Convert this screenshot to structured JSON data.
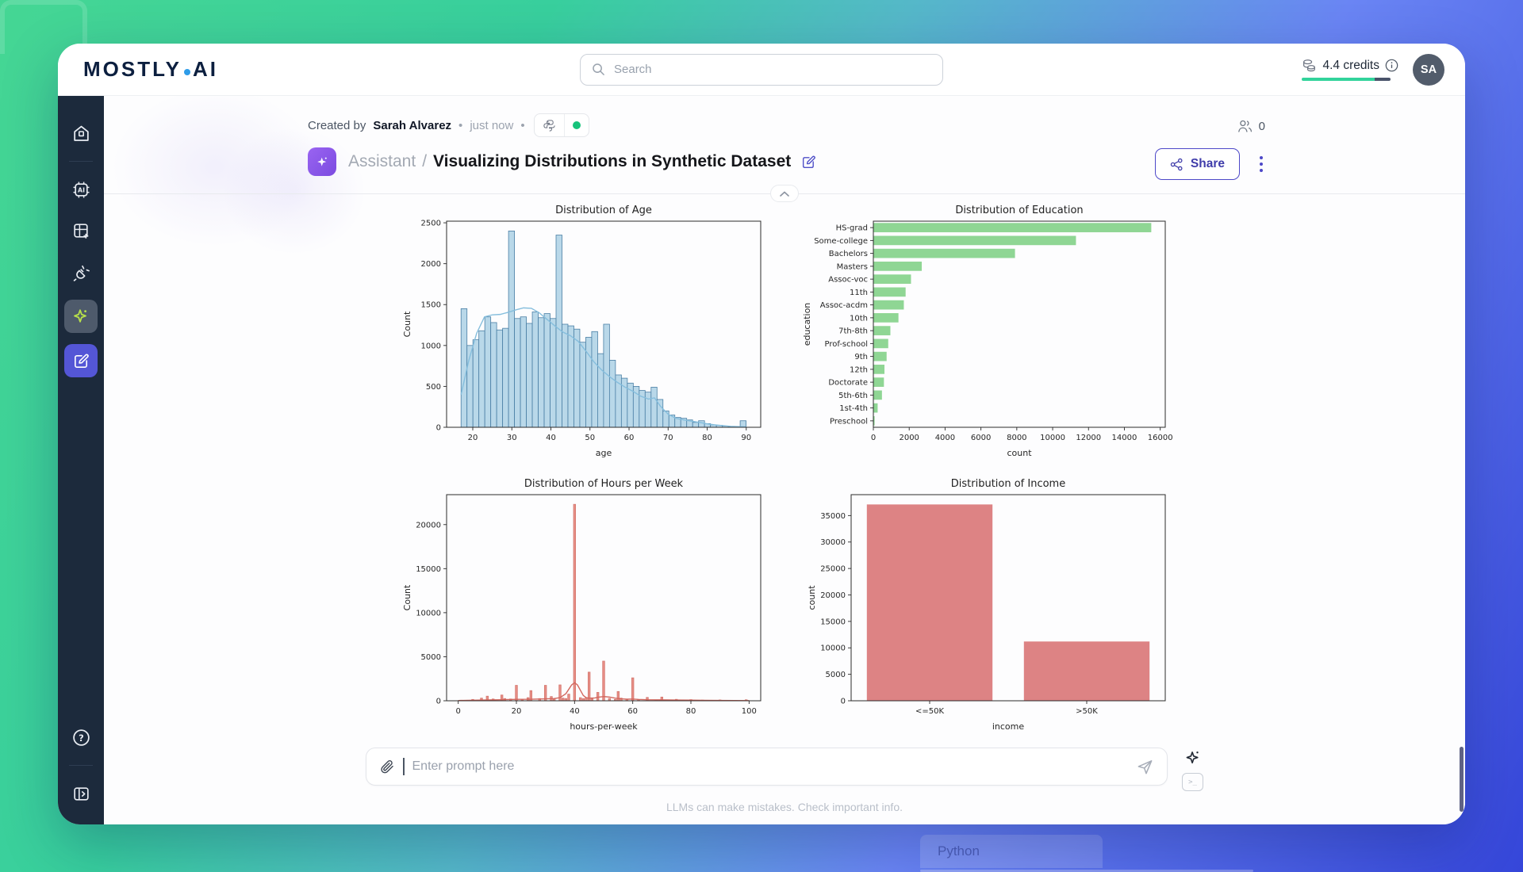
{
  "topbar": {
    "logo_left": "MOSTLY",
    "logo_right": "AI",
    "search_placeholder": "Search",
    "credits_label": "4.4 credits",
    "avatar_initials": "SA"
  },
  "header": {
    "created_prefix": "Created by",
    "author": "Sarah Alvarez",
    "sep": "•",
    "timestamp": "just now",
    "badge_icons": [
      "python-icon",
      "status-dot"
    ],
    "viewers_count": "0",
    "breadcrumb": "Assistant",
    "crumb_sep": "/",
    "title": "Visualizing Distributions in Synthetic Dataset",
    "share_label": "Share"
  },
  "prompt": {
    "placeholder": "Enter prompt here",
    "terminal_glyph": ">_"
  },
  "disclaimer": "LLMs can make mistakes. Check important info.",
  "background": {
    "python_label": "Python"
  },
  "colors": {
    "accent_indigo": "#5456d6",
    "sidebar_navy": "#1c2a3c",
    "status_green": "#17c37b",
    "assistant_purple": "#8b5cf6"
  },
  "chart_data": [
    {
      "type": "histogram",
      "title": "Distribution of Age",
      "xlabel": "age",
      "ylabel": "Count",
      "xlim": [
        13.3,
        93.7
      ],
      "ylim": [
        0,
        2520
      ],
      "xticks": [
        20,
        30,
        40,
        50,
        60,
        70,
        80,
        90
      ],
      "yticks": [
        0,
        500,
        1000,
        1500,
        2000,
        2500
      ],
      "bin_start": 17,
      "bin_width": 1.52,
      "counts": [
        1450,
        1000,
        1070,
        1180,
        1350,
        1280,
        1190,
        1210,
        2400,
        1330,
        1350,
        1270,
        1410,
        1340,
        1390,
        1330,
        2350,
        1260,
        1240,
        1200,
        1040,
        1100,
        1170,
        900,
        1260,
        820,
        640,
        600,
        540,
        500,
        450,
        430,
        490,
        340,
        200,
        150,
        120,
        110,
        90,
        60,
        80,
        45,
        30,
        25,
        15,
        10,
        5,
        80
      ],
      "kde": [
        [
          17,
          400
        ],
        [
          19,
          820
        ],
        [
          21,
          1150
        ],
        [
          23,
          1350
        ],
        [
          25,
          1375
        ],
        [
          27,
          1380
        ],
        [
          29,
          1405
        ],
        [
          31,
          1435
        ],
        [
          33,
          1460
        ],
        [
          35,
          1455
        ],
        [
          37,
          1400
        ],
        [
          39,
          1320
        ],
        [
          41,
          1240
        ],
        [
          43,
          1165
        ],
        [
          45,
          1120
        ],
        [
          47,
          1050
        ],
        [
          49,
          930
        ],
        [
          51,
          800
        ],
        [
          53,
          700
        ],
        [
          55,
          620
        ],
        [
          57,
          550
        ],
        [
          59,
          490
        ],
        [
          61,
          440
        ],
        [
          63,
          380
        ],
        [
          65,
          345
        ],
        [
          66.5,
          360
        ],
        [
          68,
          260
        ],
        [
          70,
          160
        ],
        [
          72,
          110
        ],
        [
          74,
          90
        ],
        [
          76,
          75
        ],
        [
          78,
          60
        ],
        [
          80,
          42
        ],
        [
          82,
          30
        ],
        [
          84,
          20
        ],
        [
          86,
          12
        ],
        [
          88,
          8
        ],
        [
          90,
          5
        ]
      ],
      "bar_color": "#b9d8e9",
      "edge_color": "#4a7fa5",
      "kde_color": "#85bedd"
    },
    {
      "type": "barh",
      "title": "Distribution of Education",
      "xlabel": "count",
      "ylabel": "education",
      "categories": [
        "HS-grad",
        "Some-college",
        "Bachelors",
        "Masters",
        "Assoc-voc",
        "11th",
        "Assoc-acdm",
        "10th",
        "7th-8th",
        "Prof-school",
        "9th",
        "12th",
        "Doctorate",
        "5th-6th",
        "1st-4th",
        "Preschool"
      ],
      "values": [
        15500,
        11300,
        7900,
        2700,
        2100,
        1800,
        1700,
        1400,
        950,
        830,
        740,
        620,
        590,
        480,
        240,
        70
      ],
      "xlim": [
        0,
        16280
      ],
      "xticks": [
        0,
        2000,
        4000,
        6000,
        8000,
        10000,
        12000,
        14000,
        16000
      ],
      "bar_color": "#8fd694"
    },
    {
      "type": "histogram",
      "title": "Distribution of Hours per Week",
      "xlabel": "hours-per-week",
      "ylabel": "Count",
      "xlim": [
        -4,
        104
      ],
      "ylim": [
        0,
        23400
      ],
      "xticks": [
        0,
        20,
        40,
        60,
        80,
        100
      ],
      "yticks": [
        0,
        5000,
        10000,
        15000,
        20000
      ],
      "bar_width": 0.7,
      "bars": [
        [
          1,
          60
        ],
        [
          5,
          150
        ],
        [
          8,
          300
        ],
        [
          10,
          520
        ],
        [
          12,
          200
        ],
        [
          15,
          650
        ],
        [
          16,
          250
        ],
        [
          18,
          200
        ],
        [
          20,
          1750
        ],
        [
          22,
          150
        ],
        [
          24,
          350
        ],
        [
          25,
          1150
        ],
        [
          28,
          250
        ],
        [
          30,
          1750
        ],
        [
          32,
          480
        ],
        [
          33,
          200
        ],
        [
          35,
          1800
        ],
        [
          36,
          300
        ],
        [
          37,
          250
        ],
        [
          38,
          750
        ],
        [
          40,
          22300
        ],
        [
          42,
          350
        ],
        [
          43,
          250
        ],
        [
          44,
          320
        ],
        [
          45,
          3250
        ],
        [
          46,
          250
        ],
        [
          48,
          950
        ],
        [
          50,
          4500
        ],
        [
          52,
          260
        ],
        [
          54,
          150
        ],
        [
          55,
          1050
        ],
        [
          56,
          300
        ],
        [
          58,
          150
        ],
        [
          60,
          2600
        ],
        [
          62,
          120
        ],
        [
          65,
          380
        ],
        [
          68,
          100
        ],
        [
          70,
          420
        ],
        [
          72,
          90
        ],
        [
          75,
          160
        ],
        [
          78,
          80
        ],
        [
          80,
          130
        ],
        [
          84,
          70
        ],
        [
          86,
          50
        ],
        [
          90,
          90
        ],
        [
          95,
          40
        ],
        [
          99,
          110
        ]
      ],
      "kde": [
        [
          0,
          30
        ],
        [
          5,
          60
        ],
        [
          10,
          100
        ],
        [
          15,
          120
        ],
        [
          20,
          160
        ],
        [
          25,
          170
        ],
        [
          30,
          220
        ],
        [
          33,
          250
        ],
        [
          35,
          350
        ],
        [
          37,
          800
        ],
        [
          38,
          1300
        ],
        [
          39,
          1800
        ],
        [
          40,
          2050
        ],
        [
          41,
          1800
        ],
        [
          42,
          1200
        ],
        [
          43,
          600
        ],
        [
          44,
          350
        ],
        [
          45,
          300
        ],
        [
          47,
          320
        ],
        [
          48,
          400
        ],
        [
          50,
          480
        ],
        [
          52,
          420
        ],
        [
          54,
          300
        ],
        [
          56,
          220
        ],
        [
          58,
          180
        ],
        [
          60,
          200
        ],
        [
          62,
          150
        ],
        [
          65,
          120
        ],
        [
          70,
          110
        ],
        [
          75,
          80
        ],
        [
          80,
          70
        ],
        [
          85,
          50
        ],
        [
          90,
          40
        ],
        [
          95,
          30
        ],
        [
          100,
          20
        ]
      ],
      "bar_color": "#e89088",
      "edge_color": "#d4766e",
      "kde_color": "#d2685f"
    },
    {
      "type": "bar",
      "title": "Distribution of Income",
      "xlabel": "income",
      "ylabel": "count",
      "categories": [
        "<=50K",
        ">50K"
      ],
      "values": [
        37100,
        11200
      ],
      "ylim": [
        0,
        38950
      ],
      "yticks": [
        0,
        5000,
        10000,
        15000,
        20000,
        25000,
        30000,
        35000
      ],
      "bar_color": "#dd8384"
    }
  ]
}
